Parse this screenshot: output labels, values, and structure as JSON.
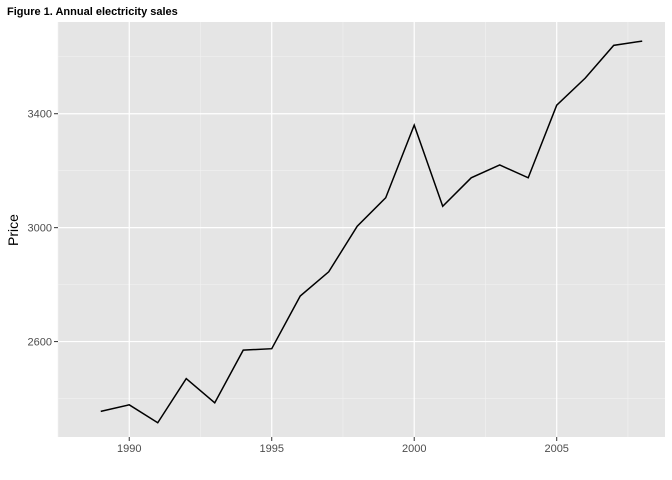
{
  "chart_data": {
    "type": "line",
    "title": "Figure 1. Annual electricity sales",
    "xlabel": "",
    "ylabel": "Price",
    "x": [
      1989,
      1990,
      1991,
      1992,
      1993,
      1994,
      1995,
      1996,
      1997,
      1998,
      1999,
      2000,
      2001,
      2002,
      2003,
      2004,
      2005,
      2006,
      2007,
      2008
    ],
    "series": [
      {
        "values": [
          2355,
          2378,
          2315,
          2470,
          2385,
          2570,
          2575,
          2760,
          2845,
          3005,
          3105,
          3360,
          3075,
          3175,
          3220,
          3175,
          3430,
          3525,
          3640,
          3655
        ]
      }
    ],
    "xlim": [
      1987.5,
      2008.8
    ],
    "ylim": [
      2265,
      3722
    ],
    "x_ticks": [
      1990,
      1995,
      2000,
      2005
    ],
    "x_tick_labels": [
      "1990",
      "1995",
      "2000",
      "2005"
    ],
    "y_ticks": [
      2600,
      3000,
      3400
    ],
    "y_tick_labels": [
      "2600",
      "3000",
      "3400"
    ],
    "grid": true,
    "legend": "none",
    "colors": {
      "panel_background": "#e5e5e5",
      "grid_major": "#ffffff",
      "grid_minor": "#f2f2f2",
      "line": "#000000",
      "tick_label": "#4d4d4d"
    }
  }
}
